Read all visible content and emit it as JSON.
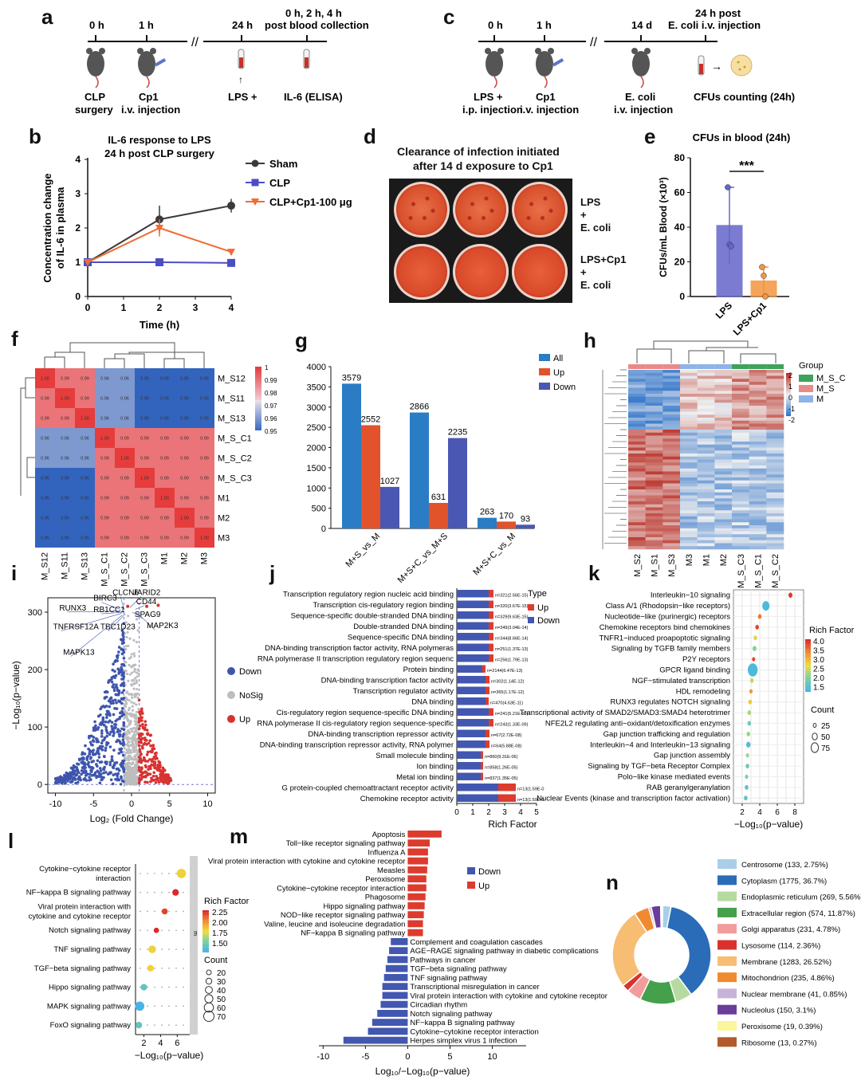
{
  "panel_letters": [
    "a",
    "b",
    "c",
    "d",
    "e",
    "f",
    "g",
    "h",
    "i",
    "j",
    "k",
    "l",
    "m",
    "n"
  ],
  "panel_a": {
    "times": [
      "0 h",
      "1 h",
      "24 h",
      "0 h, 2 h, 4 h\npost blood collection"
    ],
    "time_main": [
      "0 h",
      "1 h",
      "24 h"
    ],
    "time_last_line1": "0 h, 2 h, 4 h",
    "time_last_line2": "post blood collection",
    "labels": [
      "CLP",
      "surgery",
      "Cp1",
      "i.v. injection",
      "LPS +",
      "IL-6 (ELISA)"
    ]
  },
  "panel_c": {
    "times": [
      "0 h",
      "1 h",
      "14 d",
      "24 h post"
    ],
    "time_extra": "E. coli  i.v. injection",
    "labels": [
      "LPS +",
      "i.p. injection",
      "Cp1",
      "i.v. injection",
      "E. coli",
      "i.v. injection",
      "CFUs counting (24h)"
    ]
  },
  "panel_d": {
    "title_line1": "Clearance of infection initiated",
    "title_line2": "after 14 d exposure to Cp1",
    "row1": [
      "LPS",
      "+",
      "E. coli"
    ],
    "row2": [
      "LPS+Cp1",
      "+",
      "E. coli"
    ]
  },
  "chart_data": [
    {
      "id": "b",
      "type": "line",
      "title": "IL-6 response to LPS\n24 h post CLP surgery",
      "title_line1": "IL-6 response to LPS",
      "title_line2": "24 h post CLP surgery",
      "xlabel": "Time (h)",
      "ylabel_line1": "Concentration change",
      "ylabel_line2": "of IL-6 in plasma",
      "x": [
        0,
        2,
        4
      ],
      "xlim": [
        0,
        4
      ],
      "ylim": [
        0,
        4
      ],
      "xticks": [
        0,
        1,
        2,
        3,
        4
      ],
      "yticks": [
        0,
        1,
        2,
        3,
        4
      ],
      "series": [
        {
          "name": "Sham",
          "color": "#3a3a3a",
          "values": [
            1.0,
            2.25,
            2.65
          ],
          "err": [
            0.05,
            0.4,
            0.2
          ]
        },
        {
          "name": "CLP",
          "color": "#4b4ec2",
          "values": [
            1.0,
            1.0,
            0.98
          ],
          "err": [
            0.03,
            0.05,
            0.05
          ]
        },
        {
          "name": "CLP+Cp1-100 μg",
          "color": "#ef6c35",
          "values": [
            1.0,
            2.0,
            1.3
          ],
          "err": [
            0.03,
            0.25,
            0.05
          ]
        }
      ]
    },
    {
      "id": "e",
      "type": "bar",
      "title": "CFUs in blood (24h)",
      "ylabel": "CFUs/mL Blood (×10³)",
      "categories": [
        "LPS",
        "LPS+Cp1"
      ],
      "values": [
        41,
        9
      ],
      "err": [
        22,
        8
      ],
      "points": [
        [
          63,
          30,
          29
        ],
        [
          17,
          12,
          0
        ]
      ],
      "colors": [
        "#6466c9",
        "#f3953f"
      ],
      "ylim": [
        0,
        80
      ],
      "yticks": [
        0,
        20,
        40,
        60,
        80
      ],
      "annotation": "***"
    },
    {
      "id": "f",
      "type": "heatmap",
      "labels": [
        "M_S12",
        "M_S11",
        "M_S13",
        "M_S_C1",
        "M_S_C2",
        "M_S_C3",
        "M1",
        "M2",
        "M3"
      ],
      "colorbar_ticks": [
        "1",
        "0.99",
        "0.98",
        "0.97",
        "0.96",
        "0.95"
      ],
      "values": [
        [
          1.0,
          0.99,
          0.99,
          0.96,
          0.96,
          0.95,
          0.95,
          0.95,
          0.95
        ],
        [
          0.99,
          1.0,
          0.99,
          0.96,
          0.96,
          0.95,
          0.95,
          0.95,
          0.95
        ],
        [
          0.99,
          0.99,
          1.0,
          0.96,
          0.96,
          0.95,
          0.95,
          0.95,
          0.95
        ],
        [
          0.96,
          0.96,
          0.96,
          1.0,
          0.99,
          0.99,
          0.99,
          0.99,
          0.99
        ],
        [
          0.96,
          0.96,
          0.96,
          0.99,
          1.0,
          0.99,
          0.99,
          0.99,
          0.99
        ],
        [
          0.95,
          0.95,
          0.95,
          0.99,
          0.99,
          1.0,
          0.99,
          0.99,
          0.99
        ],
        [
          0.95,
          0.95,
          0.95,
          0.99,
          0.99,
          0.99,
          1.0,
          0.99,
          0.99
        ],
        [
          0.95,
          0.95,
          0.95,
          0.99,
          0.99,
          0.99,
          0.99,
          1.0,
          0.99
        ],
        [
          0.95,
          0.95,
          0.95,
          0.99,
          0.99,
          0.99,
          0.99,
          0.99,
          1.0
        ]
      ]
    },
    {
      "id": "g",
      "type": "bar",
      "categories": [
        "M+S_vs_M",
        "M+S+C_vs_M+S",
        "M+S+C_vs_M"
      ],
      "ylim": [
        0,
        4000
      ],
      "yticks": [
        0,
        500,
        1000,
        1500,
        2000,
        2500,
        3000,
        3500,
        4000
      ],
      "series": [
        {
          "name": "All",
          "color": "#2a7cc4",
          "values": [
            3579,
            2866,
            263
          ]
        },
        {
          "name": "Up",
          "color": "#e2532b",
          "values": [
            2552,
            631,
            170
          ]
        },
        {
          "name": "Down",
          "color": "#4a58b3",
          "values": [
            1027,
            2235,
            93
          ]
        }
      ]
    },
    {
      "id": "h",
      "type": "heatmap",
      "samples": [
        "M_S2",
        "M_S1",
        "M_S3",
        "M3",
        "M1",
        "M2",
        "M_S_C3",
        "M_S_C1",
        "M_S_C2"
      ],
      "legend_title": "Group",
      "groups": [
        {
          "name": "M_S_C",
          "color": "#3da25b"
        },
        {
          "name": "M_S",
          "color": "#e98a8a"
        },
        {
          "name": "M",
          "color": "#8fb3e8"
        }
      ],
      "colorbar_ticks": [
        "2",
        "1",
        "0",
        "-1",
        "-2"
      ]
    },
    {
      "id": "i",
      "type": "scatter",
      "xlabel": "Log₂ (Fold Change)",
      "ylabel": "−Log₁₀(p−value)",
      "xlim": [
        -11,
        11
      ],
      "ylim": [
        -15,
        325
      ],
      "xticks": [
        -10,
        -5,
        0,
        5,
        10
      ],
      "yticks": [
        0,
        100,
        200,
        300
      ],
      "legend": [
        {
          "name": "Down",
          "color": "#3e55ad"
        },
        {
          "name": "NoSig",
          "color": "#bdbdbd"
        },
        {
          "name": "Up",
          "color": "#d73232"
        }
      ],
      "gene_labels": [
        "CLCN6",
        "JARID2",
        "BIRC3",
        "CD44",
        "RUNX3",
        "RB1CC1",
        "SPAG9",
        "TNFRSF12A",
        "TBC1D23",
        "MAP2K3",
        "MAPK13"
      ]
    },
    {
      "id": "j",
      "type": "bar",
      "xlabel": "Rich Factor",
      "xlim": [
        0,
        5
      ],
      "xticks": [
        0,
        1,
        2,
        3,
        4,
        5
      ],
      "legend_title": "Type",
      "legend": [
        {
          "name": "Up",
          "color": "#dd3b2e"
        },
        {
          "name": "Down",
          "color": "#4257b0"
        }
      ],
      "categories": [
        "Transcription regulatory region nucleic acid binding",
        "Transcription cis-regulatory region binding",
        "Sequence-specific double-stranded DNA binding",
        "Double-stranded DNA binding",
        "Sequence-specific DNA binding",
        "DNA-binding transcription factor activity, RNA polymeras",
        "RNA polymerase II transcription regulatory region sequenc",
        "Protein binding",
        "DNA-binding transcription factor activity",
        "Transcription regulator activity",
        "DNA binding",
        "Cis-regulatory region sequence-specific DNA binding",
        "RNA polymerase II cis-regulatory region sequence-specific",
        "DNA-binding transcription repressor activity",
        "DNA-binding transcription repressor activity, RNA polymer",
        "Small molecule binding",
        "Ion binding",
        "Metal ion binding",
        "G protein-coupled chemoattractant receptor activity",
        "Chemokine receptor activity"
      ],
      "down": [
        2.0,
        2.0,
        2.0,
        2.0,
        2.0,
        2.0,
        2.0,
        1.6,
        1.8,
        1.8,
        1.8,
        2.0,
        2.0,
        1.8,
        1.8,
        1.5,
        1.5,
        1.5,
        2.6,
        2.6
      ],
      "up": [
        0.3,
        0.3,
        0.3,
        0.3,
        0.3,
        0.3,
        0.3,
        0.2,
        0.25,
        0.25,
        0.2,
        0.3,
        0.3,
        0.25,
        0.25,
        0.15,
        0.15,
        0.15,
        1.1,
        1.1
      ],
      "annotations": [
        "n=321(2.56E-15)",
        "n=320(3.67E-15)",
        "n=329(9.63E-15)",
        "n=349(3.04E-14)",
        "n=344(8.66E-14)",
        "n=251(1.37E-13)",
        "n=256(1.79E-13)",
        "n=2144(6.47E-13)",
        "n=302(1.14E-12)",
        "n=365(1.17E-12)",
        "n=470(4.63E-11)",
        "n=241(5.21E-10)",
        "n=243(1.33E-09)",
        "n=67(2.72E-08)",
        "n=64(5.88E-08)",
        "n=860(9.31E-06)",
        "n=858(1.26E-05)",
        "n=837(1.35E-05)",
        "n=13(1.59E-0",
        "n=13(1.59E-0"
      ]
    },
    {
      "id": "k",
      "type": "scatter",
      "xlabel": "−Log₁₀(p−value)",
      "xlim": [
        1,
        9
      ],
      "xticks": [
        2,
        4,
        6,
        8
      ],
      "legend_title_color": "Rich Factor",
      "colorbar_ticks": [
        "4.0",
        "3.5",
        "3.0",
        "2.5",
        "2.0",
        "1.5"
      ],
      "legend_title_size": "Count",
      "size_ticks": [
        "25",
        "50",
        "75"
      ],
      "categories": [
        "Interleukin−10 signaling",
        "Class A/1 (Rhodopsin−like receptors)",
        "Nucleotide−like (purinergic) receptors",
        "Chemokine receptors bind chemokines",
        "TNFR1−induced proapoptotic signaling",
        "Signaling by TGFB family members",
        "P2Y receptors",
        "GPCR ligand binding",
        "NGF−stimulated transcription",
        "HDL remodeling",
        "RUNX3 regulates NOTCH signaling",
        "Transcriptional activity of SMAD2/SMAD3:SMAD4 heterotrimer",
        "NFE2L2 regulating anti−oxidant/detoxification enzymes",
        "Gap junction trafficking and regulation",
        "Interleukin−4 and Interleukin−13 signaling",
        "Gap junction assembly",
        "Signaling by TGF−beta Receptor Complex",
        "Polo−like kinase mediated events",
        "RAB geranylgeranylation",
        "Nuclear Events (kinase and transcription factor activation)"
      ],
      "x": [
        7.5,
        4.7,
        4.0,
        3.7,
        3.5,
        3.4,
        3.3,
        3.2,
        3.1,
        3.0,
        2.9,
        2.8,
        2.8,
        2.7,
        2.7,
        2.6,
        2.6,
        2.5,
        2.5,
        2.4
      ],
      "rich": [
        3.9,
        1.6,
        3.5,
        3.8,
        2.6,
        2.2,
        3.8,
        1.6,
        2.5,
        3.3,
        2.9,
        2.4,
        2.0,
        2.3,
        1.7,
        2.3,
        2.0,
        2.1,
        1.8,
        1.8
      ],
      "count": [
        12,
        40,
        10,
        10,
        10,
        12,
        8,
        75,
        10,
        8,
        10,
        10,
        10,
        10,
        15,
        8,
        10,
        8,
        10,
        10
      ]
    },
    {
      "id": "l",
      "type": "scatter",
      "xlabel": "−Log₁₀(p−value)",
      "xlim": [
        1,
        7.5
      ],
      "xticks": [
        2,
        4,
        6
      ],
      "strip_label": "m",
      "legend_title_color": "Rich Factor",
      "colorbar_ticks": [
        "2.25",
        "2.00",
        "1.75",
        "1.50"
      ],
      "legend_title_size": "Count",
      "size_ticks": [
        "20",
        "30",
        "40",
        "50",
        "60",
        "70"
      ],
      "categories": [
        "Cytokine−cytokine receptor interaction",
        "NF−kappa B signaling pathway",
        "Viral protein interaction with cytokine and cytokine receptor",
        "Notch signaling pathway",
        "TNF signaling pathway",
        "TGF−beta signaling pathway",
        "Hippo signaling pathway",
        "MAPK signaling pathway",
        "FoxO signaling pathway"
      ],
      "x": [
        6.5,
        5.8,
        4.5,
        3.5,
        3.0,
        2.8,
        2.0,
        1.5,
        1.4
      ],
      "rich": [
        1.9,
        2.3,
        2.2,
        2.3,
        1.9,
        1.9,
        1.6,
        1.5,
        1.6
      ],
      "count": [
        60,
        30,
        25,
        20,
        40,
        30,
        30,
        60,
        30
      ]
    },
    {
      "id": "m",
      "type": "bar",
      "xlabel": "Log₁₀/−Log₁₀(p−value)",
      "xlim": [
        -10.5,
        14
      ],
      "xticks": [
        -10,
        -5,
        0,
        5,
        10
      ],
      "legend": [
        {
          "name": "Down",
          "color": "#4257b0"
        },
        {
          "name": "Up",
          "color": "#dd3b2e"
        }
      ],
      "up_categories": [
        "Apoptosis",
        "Toll−like receptor signaling pathway",
        "Influenza A",
        "Viral protein interaction with cytokine and cytokine receptor",
        "Measles",
        "Peroxisome",
        "Cytokine−cytokine receptor interaction",
        "Phagosome",
        "Hippo signaling pathway",
        "NOD−like receptor signaling pathway",
        "Valine, leucine and isoleucine degradation",
        "NF−kappa B signaling pathway"
      ],
      "up_values": [
        4.0,
        2.6,
        2.4,
        2.4,
        2.3,
        2.2,
        2.2,
        2.1,
        2.0,
        1.9,
        1.8,
        1.8
      ],
      "down_categories": [
        "Complement and coagulation cascades",
        "AGE−RAGE signaling pathway in diabetic complications",
        "Pathways in cancer",
        "TGF−beta signaling pathway",
        "TNF signaling pathway",
        "Transcriptional misregulation in cancer",
        "Viral protein interaction with cytokine and cytokine receptor",
        "Circadian rhythm",
        "Notch signaling pathway",
        "NF−kappa B signaling pathway",
        "Cytokine−cytokine receptor interaction",
        "Herpes simplex virus 1 infection"
      ],
      "down_values": [
        -2.0,
        -2.2,
        -2.4,
        -2.6,
        -2.8,
        -3.0,
        -3.0,
        -3.2,
        -3.6,
        -4.2,
        -4.7,
        -7.6
      ]
    },
    {
      "id": "n",
      "type": "pie",
      "categories": [
        "Centrosome (133, 2.75%)",
        "Cytoplasm (1775, 36.7%)",
        "Endoplasmic reticulum (269, 5.56%)",
        "Extracellular region (574, 11.87%)",
        "Golgi apparatus (231, 4.78%)",
        "Lysosome (114, 2.36%)",
        "Membrane (1283, 26.52%)",
        "Mitochondrion (235, 4.86%)",
        "Nuclear membrane (41, 0.85%)",
        "Nucleolus (150, 3.1%)",
        "Peroxisome (19, 0.39%)",
        "Ribosome (13, 0.27%)"
      ],
      "values": [
        133,
        1775,
        269,
        574,
        231,
        114,
        1283,
        235,
        41,
        150,
        19,
        13
      ],
      "colors": [
        "#a9cfe8",
        "#2a6cb8",
        "#b6daa0",
        "#44a04a",
        "#f29c9c",
        "#d9322e",
        "#f7bd73",
        "#f08a2f",
        "#c8b3d8",
        "#6a3d9a",
        "#fbf59b",
        "#b15b2a"
      ]
    }
  ]
}
